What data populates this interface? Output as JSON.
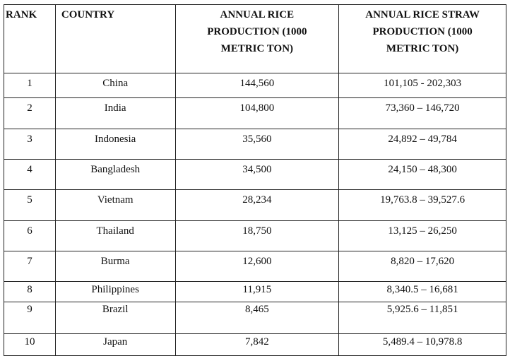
{
  "table": {
    "headers": [
      "RANK",
      "COUNTRY",
      "ANNUAL RICE PRODUCTION (1000 METRIC TON)",
      "ANNUAL RICE  STRAW PRODUCTION (1000 METRIC TON)"
    ],
    "rows": [
      [
        "1",
        "China",
        "144,560",
        "101,105 - 202,303"
      ],
      [
        "2",
        "India",
        "104,800",
        "73,360 – 146,720"
      ],
      [
        "3",
        "Indonesia",
        "35,560",
        "24,892 – 49,784"
      ],
      [
        "4",
        "Bangladesh",
        "34,500",
        "24,150 – 48,300"
      ],
      [
        "5",
        "Vietnam",
        "28,234",
        "19,763.8 – 39,527.6"
      ],
      [
        "6",
        "Thailand",
        "18,750",
        "13,125 – 26,250"
      ],
      [
        "7",
        "Burma",
        "12,600",
        "8,820 – 17,620"
      ],
      [
        "8",
        "Philippines",
        "11,915",
        "8,340.5 – 16,681"
      ],
      [
        "9",
        "Brazil",
        "8,465",
        "5,925.6 – 11,851"
      ],
      [
        "10",
        "Japan",
        "7,842",
        "5,489.4 – 10,978.8"
      ]
    ]
  }
}
